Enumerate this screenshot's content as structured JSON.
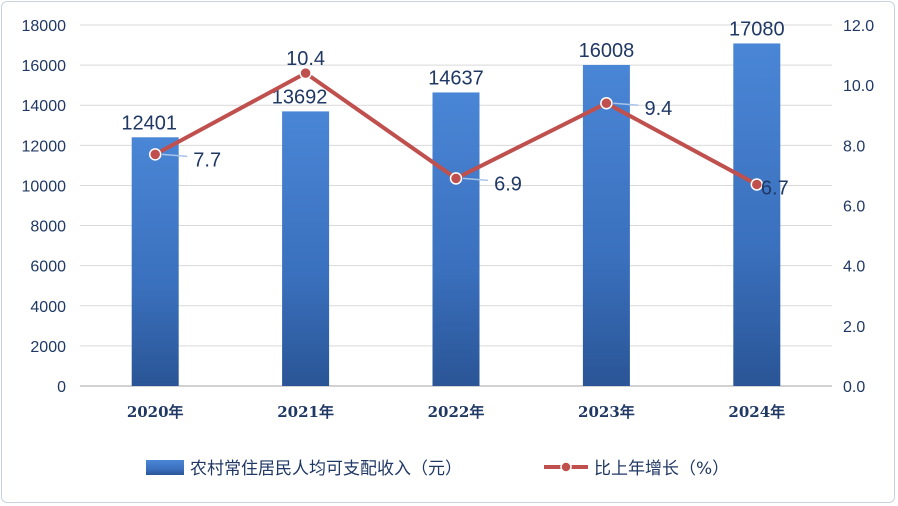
{
  "chart_data": {
    "type": "bar+line",
    "categories": [
      "2020年",
      "2021年",
      "2022年",
      "2023年",
      "2024年"
    ],
    "series": [
      {
        "name": "农村常住居民人均可支配收入（元）",
        "type": "bar",
        "axis": "left",
        "values": [
          12401,
          13692,
          14637,
          16008,
          17080
        ],
        "labels": [
          "12401",
          "13692",
          "14637",
          "16008",
          "17080"
        ],
        "color": "#3a76c4"
      },
      {
        "name": "比上年增长（%）",
        "type": "line",
        "axis": "right",
        "values": [
          7.7,
          10.4,
          6.9,
          9.4,
          6.7
        ],
        "labels": [
          "7.7",
          "10.4",
          "6.9",
          "9.4",
          "6.7"
        ],
        "color": "#c0504d"
      }
    ],
    "y_left": {
      "ylim": [
        0,
        18000
      ],
      "ticks": [
        "0",
        "2000",
        "4000",
        "6000",
        "8000",
        "10000",
        "12000",
        "14000",
        "16000",
        "18000"
      ]
    },
    "y_right": {
      "ylim": [
        0,
        12
      ],
      "ticks": [
        "0.0",
        "2.0",
        "4.0",
        "6.0",
        "8.0",
        "10.0",
        "12.0"
      ]
    },
    "grid": true,
    "legend": "bottom"
  }
}
